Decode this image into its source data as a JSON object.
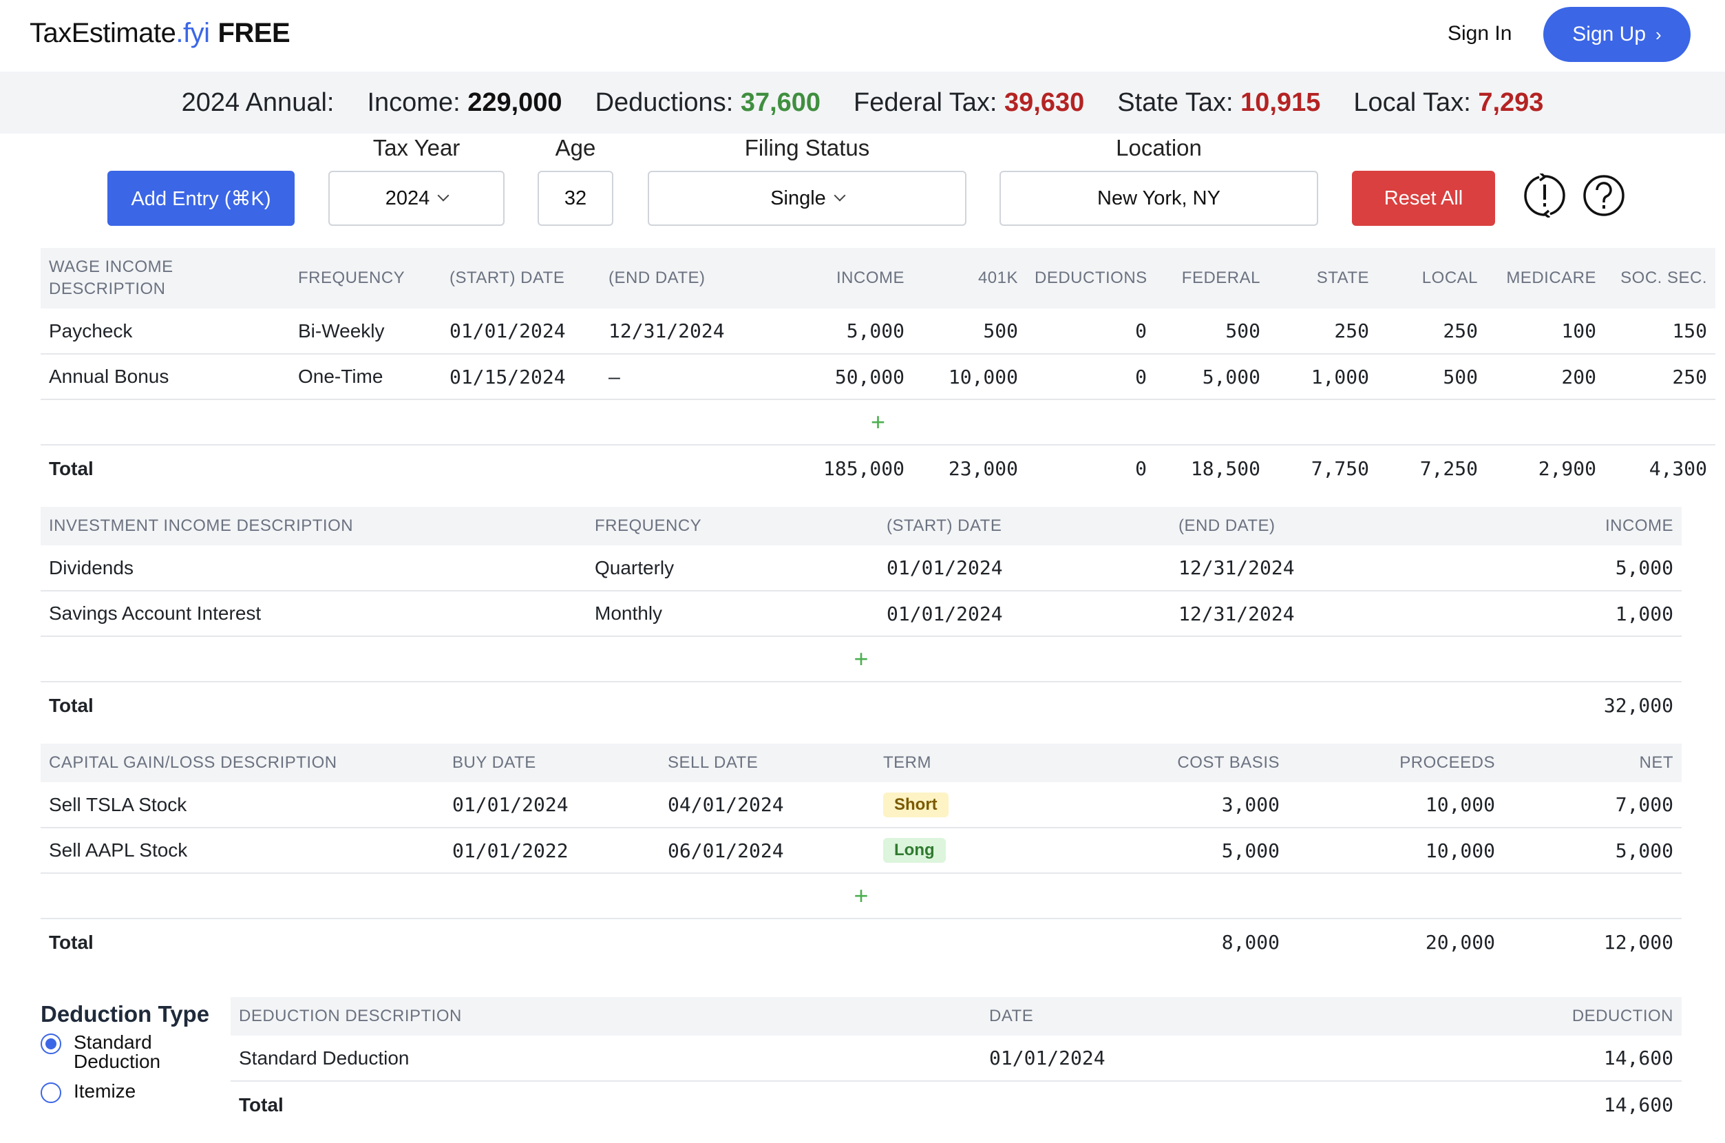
{
  "header": {
    "brand_name": "TaxEstimate",
    "brand_tld": ".fyi",
    "brand_tag": "FREE",
    "signin_label": "Sign In",
    "signup_label": "Sign Up",
    "signup_chevron": "›"
  },
  "summary": {
    "title": "2024 Annual:",
    "income_label": "Income:",
    "income_value": "229,000",
    "deductions_label": "Deductions:",
    "deductions_value": "37,600",
    "federal_label": "Federal Tax:",
    "federal_value": "39,630",
    "state_label": "State Tax:",
    "state_value": "10,915",
    "local_label": "Local Tax:",
    "local_value": "7,293"
  },
  "controls": {
    "add_entry_label": "Add Entry (⌘K)",
    "tax_year_label": "Tax Year",
    "tax_year_value": "2024",
    "age_label": "Age",
    "age_value": "32",
    "filing_status_label": "Filing Status",
    "filing_status_value": "Single",
    "location_label": "Location",
    "location_value": "New York, NY",
    "reset_label": "Reset All"
  },
  "wage_table": {
    "headers": [
      "WAGE INCOME DESCRIPTION",
      "FREQUENCY",
      "(START) DATE",
      "(END DATE)",
      "INCOME",
      "401K",
      "DEDUCTIONS",
      "FEDERAL",
      "STATE",
      "LOCAL",
      "MEDICARE",
      "SOC. SEC."
    ],
    "rows": [
      [
        "Paycheck",
        "Bi-Weekly",
        "01/01/2024",
        "12/31/2024",
        "5,000",
        "500",
        "0",
        "500",
        "250",
        "250",
        "100",
        "150"
      ],
      [
        "Annual Bonus",
        "One-Time",
        "01/15/2024",
        "–",
        "50,000",
        "10,000",
        "0",
        "5,000",
        "1,000",
        "500",
        "200",
        "250"
      ]
    ],
    "add_symbol": "+",
    "total_label": "Total",
    "totals": [
      "185,000",
      "23,000",
      "0",
      "18,500",
      "7,750",
      "7,250",
      "2,900",
      "4,300"
    ]
  },
  "investment_table": {
    "headers": [
      "INVESTMENT INCOME DESCRIPTION",
      "FREQUENCY",
      "(START) DATE",
      "(END DATE)",
      "INCOME"
    ],
    "rows": [
      [
        "Dividends",
        "Quarterly",
        "01/01/2024",
        "12/31/2024",
        "5,000"
      ],
      [
        "Savings Account Interest",
        "Monthly",
        "01/01/2024",
        "12/31/2024",
        "1,000"
      ]
    ],
    "add_symbol": "+",
    "total_label": "Total",
    "total_income": "32,000"
  },
  "capital_table": {
    "headers": [
      "CAPITAL GAIN/LOSS DESCRIPTION",
      "BUY DATE",
      "SELL DATE",
      "TERM",
      "COST BASIS",
      "PROCEEDS",
      "NET"
    ],
    "rows": [
      [
        "Sell TSLA Stock",
        "01/01/2024",
        "04/01/2024",
        "Short",
        "3,000",
        "10,000",
        "7,000"
      ],
      [
        "Sell AAPL Stock",
        "01/01/2022",
        "06/01/2024",
        "Long",
        "5,000",
        "10,000",
        "5,000"
      ]
    ],
    "add_symbol": "+",
    "total_label": "Total",
    "total_cost_basis": "8,000",
    "total_proceeds": "20,000",
    "total_net": "12,000"
  },
  "deduction_type": {
    "title": "Deduction Type",
    "standard_label_line1": "Standard",
    "standard_label_line2": "Deduction",
    "itemize_label": "Itemize",
    "selected": "standard"
  },
  "deduction_table": {
    "headers": [
      "DEDUCTION DESCRIPTION",
      "DATE",
      "DEDUCTION"
    ],
    "rows": [
      [
        "Standard Deduction",
        "01/01/2024",
        "14,600"
      ]
    ],
    "total_label": "Total",
    "total_value": "14,600"
  },
  "colors": {
    "accent": "#3b66e6",
    "positive": "#3f8f3f",
    "negative": "#b42323",
    "reset": "#d9403f",
    "band": "#f3f4f6"
  },
  "icons": [
    "chevron-right-icon",
    "chevron-down-icon",
    "refresh-alert-icon",
    "help-icon",
    "plus-icon",
    "radio-icon"
  ]
}
